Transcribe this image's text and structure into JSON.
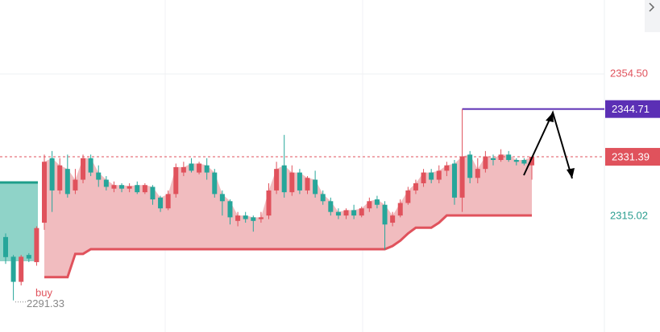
{
  "chart_data": {
    "type": "candlestick",
    "open": [
      2309,
      2303.5,
      2296.5,
      2304,
      2302,
      2313,
      2331,
      2322,
      2328,
      2322,
      2325,
      2331,
      2327,
      2325,
      2322.5,
      2323.5,
      2322.5,
      2323.5,
      2321.5,
      2323,
      2320,
      2317,
      2321,
      2327,
      2329.5,
      2327,
      2329,
      2327,
      2321,
      2319,
      2313.5,
      2315,
      2314.5,
      2314,
      2315,
      2322,
      2329,
      2321.5,
      2327,
      2322,
      2325,
      2321,
      2319,
      2316,
      2315,
      2316.5,
      2315,
      2317,
      2319.5,
      2318,
      2313,
      2315,
      2318.5,
      2322,
      2324,
      2327,
      2325,
      2327.5,
      2329.5,
      2320,
      2332,
      2325.5,
      2328,
      2331,
      2330.5,
      2332,
      2330.5,
      2330.5,
      2329
    ],
    "high": [
      2310,
      2304,
      2304,
      2304.5,
      2312,
      2332,
      2333,
      2331,
      2332,
      2328,
      2332,
      2332,
      2329,
      2326,
      2324.5,
      2324,
      2324,
      2324.5,
      2324,
      2323.5,
      2320.5,
      2322,
      2329.5,
      2330,
      2331,
      2330,
      2331,
      2328,
      2322,
      2319.5,
      2316,
      2316,
      2315,
      2316,
      2324,
      2330,
      2337.5,
      2329,
      2328,
      2326,
      2327.5,
      2322,
      2320,
      2317,
      2317,
      2318,
      2317.5,
      2320,
      2320.5,
      2319,
      2316,
      2319.5,
      2323,
      2325,
      2328,
      2328,
      2329,
      2330,
      2330.5,
      2344.71,
      2333,
      2331,
      2333,
      2332,
      2333.5,
      2333,
      2331,
      2331,
      2331.5
    ],
    "low": [
      2301.5,
      2291.33,
      2295.5,
      2302,
      2301,
      2311,
      2316,
      2321,
      2320,
      2321,
      2324,
      2326,
      2323,
      2322,
      2321.5,
      2321.5,
      2321.5,
      2321,
      2321,
      2318,
      2316,
      2316.5,
      2320,
      2326,
      2327,
      2326.5,
      2325,
      2320,
      2315,
      2312.5,
      2312,
      2313,
      2310.5,
      2313,
      2314,
      2321,
      2320,
      2320.5,
      2321,
      2321,
      2320,
      2318,
      2315,
      2314,
      2314,
      2314,
      2314.5,
      2316,
      2317,
      2305.5,
      2312,
      2314.5,
      2318,
      2321,
      2323,
      2324,
      2324,
      2326,
      2318,
      2316,
      2324,
      2324,
      2327,
      2329,
      2330,
      2330,
      2329,
      2329,
      2325
    ],
    "close": [
      2303.4,
      2296.5,
      2303.5,
      2303,
      2311.5,
      2330,
      2322,
      2329,
      2321,
      2325,
      2331,
      2327,
      2325,
      2323,
      2323.5,
      2322.5,
      2323.2,
      2321.5,
      2323.5,
      2319.5,
      2317,
      2321,
      2328.5,
      2328.5,
      2327.5,
      2329.5,
      2327,
      2321,
      2319,
      2314.5,
      2315,
      2314,
      2313.5,
      2314.5,
      2322,
      2328,
      2321.5,
      2327,
      2322,
      2325.5,
      2321,
      2319,
      2316,
      2315,
      2316.5,
      2315,
      2317,
      2319,
      2318,
      2312.5,
      2315,
      2318.5,
      2322,
      2324,
      2327,
      2325,
      2327.5,
      2329,
      2320,
      2331.5,
      2325.5,
      2328,
      2331.5,
      2330.5,
      2332,
      2330.5,
      2330,
      2329.5,
      2331.39
    ],
    "up_color": "#e0525c",
    "down_color": "#26a69a",
    "ylim": [
      2282.5,
      2375.14
    ],
    "yticks": [
      {
        "value": 2354.5,
        "label": "2354.50"
      }
    ],
    "grid": true,
    "stop_line": {
      "color": "#e0525c",
      "fill": "#f0b8bc",
      "values": [
        null,
        null,
        null,
        null,
        null,
        2297.8,
        2297.8,
        2297.8,
        2297.8,
        2304.3,
        2304.3,
        2305.6,
        2305.6,
        2305.6,
        2305.6,
        2305.6,
        2305.6,
        2305.6,
        2305.6,
        2305.6,
        2305.6,
        2305.6,
        2305.6,
        2305.6,
        2305.6,
        2305.6,
        2305.6,
        2305.6,
        2305.6,
        2305.6,
        2305.6,
        2305.6,
        2305.6,
        2305.6,
        2305.6,
        2305.6,
        2305.6,
        2305.6,
        2305.6,
        2305.6,
        2305.6,
        2305.6,
        2305.6,
        2305.6,
        2305.6,
        2305.6,
        2305.6,
        2305.6,
        2305.6,
        2305.6,
        2306.5,
        2308,
        2310,
        2311.6,
        2311.6,
        2311.6,
        2313,
        2315.02,
        2315.02,
        2315.02,
        2315.02,
        2315.02,
        2315.02,
        2315.02,
        2315.02,
        2315.02,
        2315.02,
        2315.02,
        2315.02
      ]
    },
    "price_tags": [
      {
        "value": 2344.71,
        "color": "#5b2fb5",
        "line": "solid"
      },
      {
        "value": 2331.39,
        "color": "#e0525c",
        "line": "dashed"
      },
      {
        "value": 2315.02,
        "color": "#2a9d8f",
        "line": "none"
      }
    ],
    "low_label": {
      "value": 2291.33,
      "color": "#888888"
    },
    "annotation": {
      "text": "buy",
      "color": "#e0525c"
    }
  }
}
